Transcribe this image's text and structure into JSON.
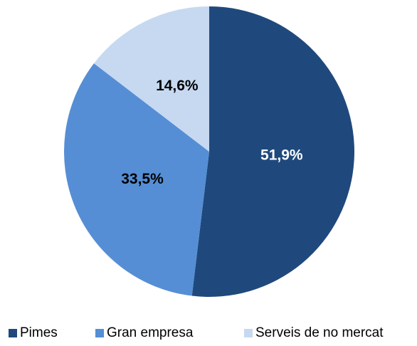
{
  "chart_data": {
    "type": "pie",
    "categories": [
      "Pimes",
      "Gran empresa",
      "Serveis de no mercat"
    ],
    "values": [
      51.9,
      33.5,
      14.6
    ],
    "value_labels": [
      "51,9%",
      "33,5%",
      "14,6%"
    ],
    "colors": [
      "#1f497d",
      "#558ed5",
      "#c6d9f1"
    ],
    "label_colors": [
      "#ffffff",
      "#000000",
      "#000000"
    ],
    "legend": "bottom"
  }
}
